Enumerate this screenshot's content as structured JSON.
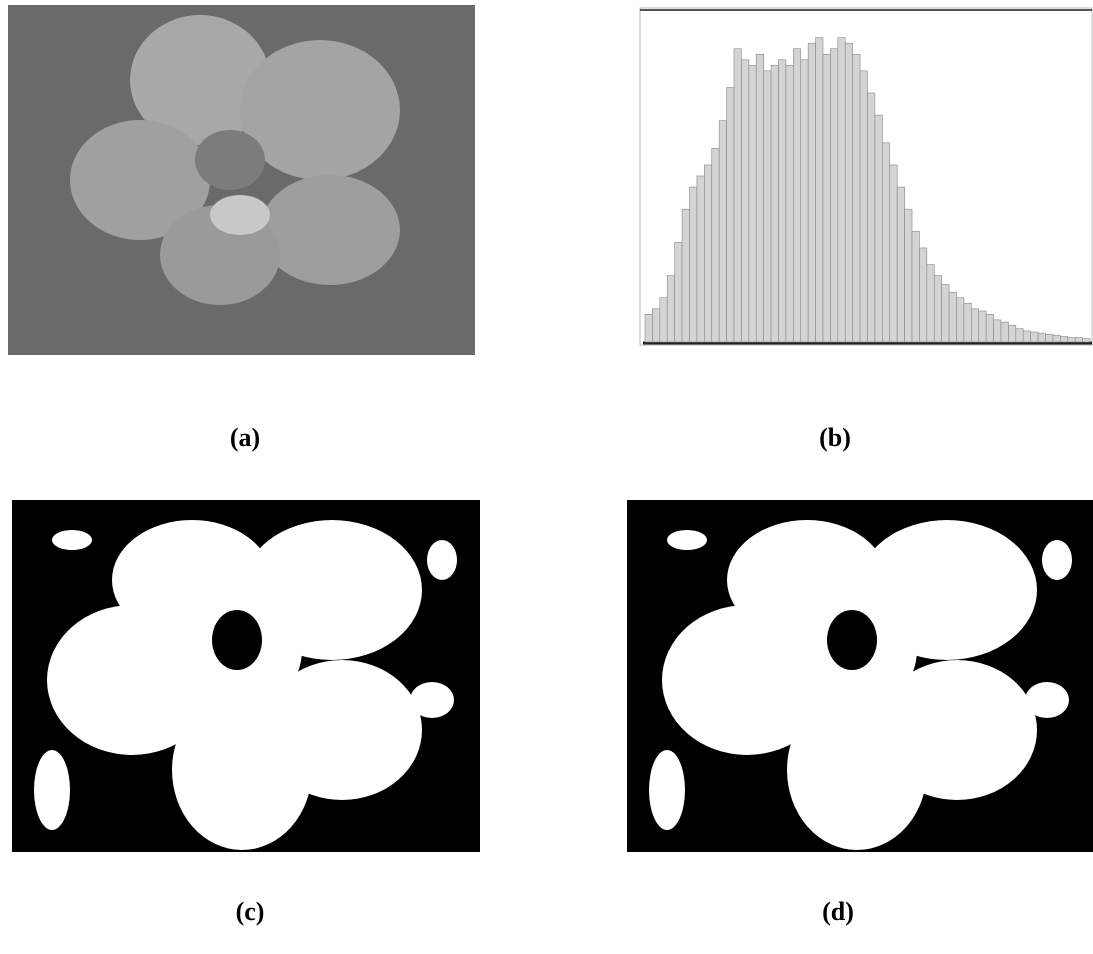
{
  "panels": [
    {
      "label": "(a)"
    },
    {
      "label": "(b)",
      "histogram": {
        "ylim": [
          0,
          300
        ],
        "values": [
          25,
          30,
          40,
          60,
          90,
          120,
          140,
          150,
          160,
          175,
          200,
          230,
          265,
          255,
          250,
          260,
          245,
          250,
          255,
          250,
          265,
          255,
          270,
          275,
          260,
          265,
          275,
          270,
          260,
          245,
          225,
          205,
          180,
          160,
          140,
          120,
          100,
          85,
          70,
          60,
          52,
          45,
          40,
          35,
          30,
          28,
          25,
          20,
          18,
          15,
          12,
          10,
          9,
          8,
          7,
          6,
          5,
          4,
          4,
          3
        ]
      }
    },
    {
      "label": "(c)"
    },
    {
      "label": "(d)"
    }
  ]
}
